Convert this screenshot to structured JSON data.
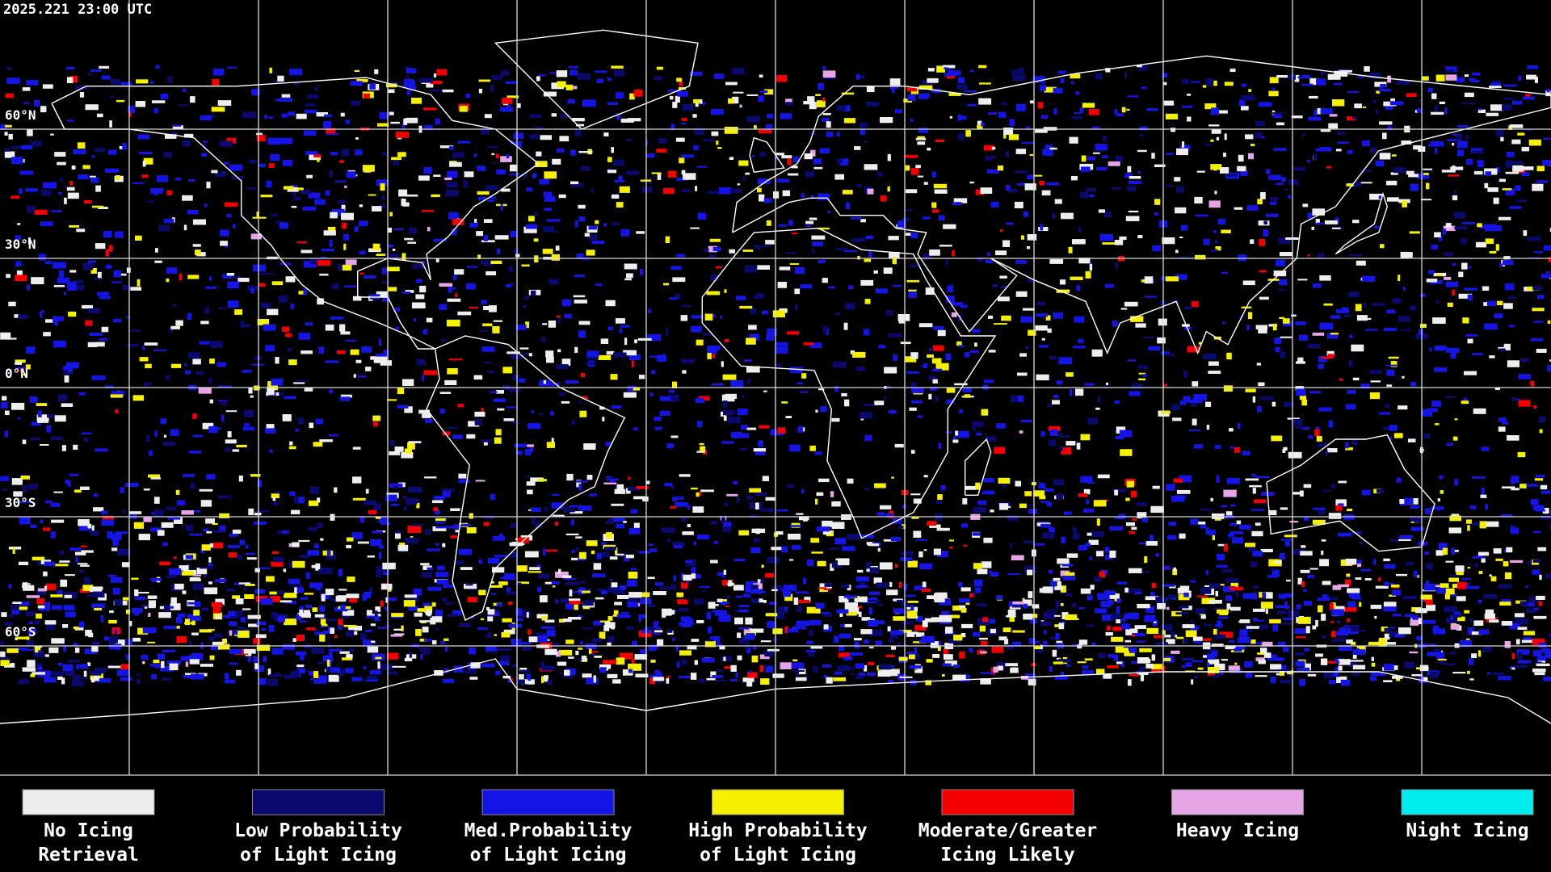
{
  "timestamp": "2025.221 23:00 UTC",
  "latitude_labels": [
    "60°N",
    "30°N",
    "0°N",
    "30°S",
    "60°S"
  ],
  "legend": [
    {
      "label": [
        "No Icing",
        "Retrieval"
      ],
      "color": "#eeeeee"
    },
    {
      "label": [
        "Low Probability",
        "of Light Icing"
      ],
      "color": "#0a0a6e"
    },
    {
      "label": [
        "Med.Probability",
        "of Light Icing"
      ],
      "color": "#1414e6"
    },
    {
      "label": [
        "High Probability",
        "of Light Icing"
      ],
      "color": "#f5f000"
    },
    {
      "label": [
        "Moderate/Greater",
        "Icing Likely"
      ],
      "color": "#f50000"
    },
    {
      "label": [
        "Heavy Icing"
      ],
      "color": "#e6a6e6"
    },
    {
      "label": [
        "Night Icing"
      ],
      "color": "#00eef0"
    }
  ]
}
